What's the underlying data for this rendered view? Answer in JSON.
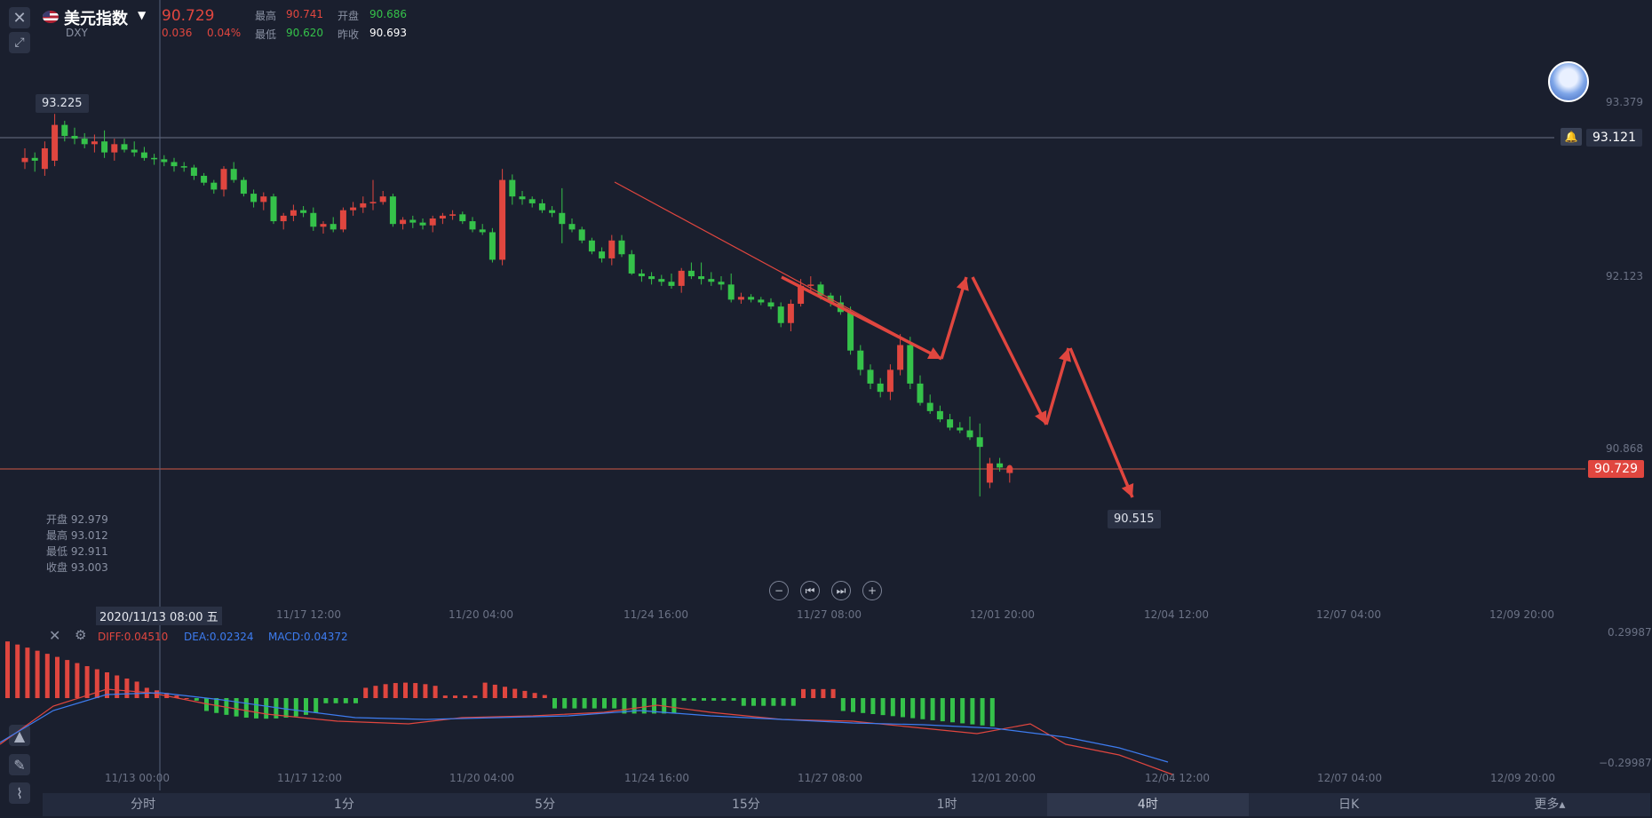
{
  "header": {
    "name": "美元指数",
    "code": "DXY",
    "price": "90.729",
    "change": "0.036",
    "change_pct": "0.04%",
    "high_label": "最高",
    "high": "90.741",
    "low_label": "最低",
    "low": "90.620",
    "open_label": "开盘",
    "open": "90.686",
    "prev_label": "昨收",
    "prev": "90.693"
  },
  "price_axis": {
    "top": "93.379",
    "mid": "92.123",
    "low": "90.868",
    "hline_price": "93.121",
    "current_price": "90.729"
  },
  "markers": {
    "max_label": "93.225",
    "min_label": "90.515"
  },
  "ohlc_tooltip": {
    "open": "开盘 92.979",
    "high": "最高 93.012",
    "low": "最低 92.911",
    "close": "收盘 93.003"
  },
  "crosshair_date": "2020/11/13 08:00 五",
  "x_axis_labels": [
    "11/17 12:00",
    "11/20 04:00",
    "11/24 16:00",
    "11/27 08:00",
    "12/01 20:00",
    "12/04 12:00",
    "12/07 04:00",
    "12/09 20:00"
  ],
  "x_axis_labels_bottom": [
    "11/13 00:00",
    "11/17 12:00",
    "11/20 04:00",
    "11/24 16:00",
    "11/27 08:00",
    "12/01 20:00",
    "12/04 12:00",
    "12/07 04:00",
    "12/09 20:00"
  ],
  "macd": {
    "diff": "DIFF:0.04510",
    "dea": "DEA:0.02324",
    "macd": "MACD:0.04372",
    "axis_top": "0.29987",
    "axis_bottom": "−0.29987"
  },
  "tabs": [
    "分时",
    "1分",
    "5分",
    "15分",
    "1时",
    "4时",
    "日K",
    "更多▴"
  ],
  "colors": {
    "up": "#e0463f",
    "down": "#35c24a",
    "bg": "#1a1f2e",
    "dif": "#e0463f",
    "dea": "#3d7cf0"
  },
  "chart_data": {
    "type": "candlestick",
    "interval": "4时",
    "ylim": [
      90.2,
      93.6
    ],
    "candles": [
      [
        92.95,
        93.05,
        92.9,
        92.98
      ],
      [
        92.98,
        93.02,
        92.88,
        92.96
      ],
      [
        92.9,
        93.1,
        92.85,
        93.05
      ],
      [
        92.96,
        93.3,
        92.92,
        93.22
      ],
      [
        93.22,
        93.25,
        93.1,
        93.14
      ],
      [
        93.14,
        93.2,
        93.08,
        93.12
      ],
      [
        93.12,
        93.16,
        93.05,
        93.08
      ],
      [
        93.08,
        93.15,
        93.02,
        93.1
      ],
      [
        93.1,
        93.18,
        92.98,
        93.02
      ],
      [
        93.02,
        93.12,
        92.96,
        93.08
      ],
      [
        93.08,
        93.12,
        93.02,
        93.04
      ],
      [
        93.04,
        93.1,
        92.99,
        93.02
      ],
      [
        93.02,
        93.06,
        92.96,
        92.98
      ],
      [
        92.98,
        93.01,
        92.93,
        92.97
      ],
      [
        92.97,
        93.0,
        92.92,
        92.95
      ],
      [
        92.95,
        92.98,
        92.88,
        92.92
      ],
      [
        92.92,
        92.95,
        92.88,
        92.91
      ],
      [
        92.91,
        92.93,
        92.82,
        92.85
      ],
      [
        92.85,
        92.87,
        92.78,
        92.8
      ],
      [
        92.8,
        92.82,
        92.72,
        92.75
      ],
      [
        92.75,
        92.92,
        92.7,
        92.9
      ],
      [
        92.9,
        92.95,
        92.8,
        92.82
      ],
      [
        92.82,
        92.84,
        92.7,
        92.72
      ],
      [
        92.72,
        92.75,
        92.62,
        92.66
      ],
      [
        92.66,
        92.73,
        92.6,
        92.7
      ],
      [
        92.7,
        92.72,
        92.5,
        92.52
      ],
      [
        92.52,
        92.58,
        92.46,
        92.56
      ],
      [
        92.56,
        92.64,
        92.52,
        92.6
      ],
      [
        92.6,
        92.63,
        92.55,
        92.58
      ],
      [
        92.58,
        92.62,
        92.45,
        92.48
      ],
      [
        92.48,
        92.52,
        92.43,
        92.5
      ],
      [
        92.5,
        92.55,
        92.44,
        92.46
      ],
      [
        92.46,
        92.62,
        92.44,
        92.6
      ],
      [
        92.6,
        92.66,
        92.56,
        92.62
      ],
      [
        92.62,
        92.7,
        92.58,
        92.65
      ],
      [
        92.65,
        92.82,
        92.6,
        92.66
      ],
      [
        92.66,
        92.74,
        92.64,
        92.7
      ],
      [
        92.7,
        92.72,
        92.48,
        92.5
      ],
      [
        92.5,
        92.55,
        92.46,
        92.53
      ],
      [
        92.53,
        92.56,
        92.47,
        92.51
      ],
      [
        92.51,
        92.54,
        92.46,
        92.49
      ],
      [
        92.49,
        92.56,
        92.44,
        92.54
      ],
      [
        92.54,
        92.58,
        92.5,
        92.56
      ],
      [
        92.56,
        92.6,
        92.53,
        92.57
      ],
      [
        92.57,
        92.59,
        92.5,
        92.52
      ],
      [
        92.52,
        92.55,
        92.44,
        92.46
      ],
      [
        92.46,
        92.5,
        92.42,
        92.44
      ],
      [
        92.44,
        92.47,
        92.22,
        92.24
      ],
      [
        92.24,
        92.9,
        92.2,
        92.82
      ],
      [
        92.82,
        92.86,
        92.64,
        92.7
      ],
      [
        92.7,
        92.74,
        92.64,
        92.68
      ],
      [
        92.68,
        92.7,
        92.62,
        92.65
      ],
      [
        92.65,
        92.68,
        92.58,
        92.6
      ],
      [
        92.6,
        92.63,
        92.55,
        92.58
      ],
      [
        92.58,
        92.76,
        92.36,
        92.5
      ],
      [
        92.5,
        92.54,
        92.44,
        92.46
      ],
      [
        92.46,
        92.48,
        92.36,
        92.38
      ],
      [
        92.38,
        92.4,
        92.28,
        92.3
      ],
      [
        92.3,
        92.33,
        92.22,
        92.25
      ],
      [
        92.25,
        92.42,
        92.2,
        92.38
      ],
      [
        92.38,
        92.42,
        92.26,
        92.28
      ],
      [
        92.28,
        92.31,
        92.13,
        92.14
      ],
      [
        92.14,
        92.17,
        92.08,
        92.12
      ],
      [
        92.12,
        92.15,
        92.06,
        92.1
      ],
      [
        92.1,
        92.13,
        92.05,
        92.08
      ],
      [
        92.08,
        92.14,
        92.03,
        92.05
      ],
      [
        92.05,
        92.18,
        92.0,
        92.16
      ],
      [
        92.16,
        92.22,
        92.1,
        92.12
      ],
      [
        92.12,
        92.22,
        92.06,
        92.1
      ],
      [
        92.1,
        92.15,
        92.05,
        92.08
      ],
      [
        92.08,
        92.12,
        92.02,
        92.06
      ],
      [
        92.06,
        92.14,
        91.93,
        91.95
      ],
      [
        91.95,
        92.0,
        91.92,
        91.97
      ],
      [
        91.97,
        91.99,
        91.93,
        91.95
      ],
      [
        91.95,
        91.97,
        91.91,
        91.93
      ],
      [
        91.93,
        91.96,
        91.88,
        91.9
      ],
      [
        91.9,
        91.93,
        91.75,
        91.78
      ],
      [
        91.78,
        91.95,
        91.72,
        91.92
      ],
      [
        91.92,
        92.1,
        91.9,
        92.05
      ],
      [
        92.05,
        92.12,
        92.0,
        92.06
      ],
      [
        92.06,
        92.08,
        91.95,
        91.98
      ],
      [
        91.98,
        92.0,
        91.9,
        91.93
      ],
      [
        91.93,
        91.98,
        91.84,
        91.86
      ],
      [
        91.86,
        91.9,
        91.55,
        91.58
      ],
      [
        91.58,
        91.62,
        91.4,
        91.44
      ],
      [
        91.44,
        91.48,
        91.3,
        91.34
      ],
      [
        91.34,
        91.38,
        91.24,
        91.28
      ],
      [
        91.28,
        91.48,
        91.22,
        91.44
      ],
      [
        91.44,
        91.7,
        91.4,
        91.62
      ],
      [
        91.62,
        91.68,
        91.3,
        91.34
      ],
      [
        91.34,
        91.4,
        91.18,
        91.2
      ],
      [
        91.2,
        91.26,
        91.12,
        91.14
      ],
      [
        91.14,
        91.18,
        91.06,
        91.08
      ],
      [
        91.08,
        91.12,
        91.0,
        91.02
      ],
      [
        91.02,
        91.06,
        90.98,
        91.0
      ],
      [
        91.0,
        91.1,
        90.93,
        90.95
      ],
      [
        90.95,
        91.05,
        90.52,
        90.88
      ],
      [
        90.62,
        90.8,
        90.58,
        90.76
      ],
      [
        90.76,
        90.8,
        90.7,
        90.73
      ],
      [
        90.69,
        90.74,
        90.62,
        90.73
      ]
    ]
  }
}
